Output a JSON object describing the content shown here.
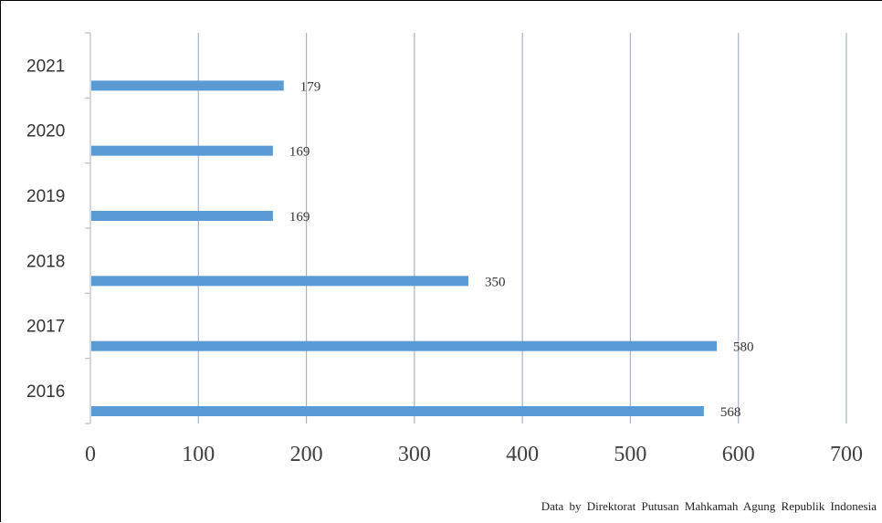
{
  "chart_data": {
    "type": "bar",
    "orientation": "horizontal",
    "categories": [
      "2016",
      "2017",
      "2018",
      "2019",
      "2020",
      "2021"
    ],
    "values": [
      568,
      580,
      350,
      169,
      169,
      179
    ],
    "data_labels": [
      "568",
      "580",
      "350",
      "169",
      "169",
      "179"
    ],
    "xlim": [
      0,
      700
    ],
    "x_ticks": [
      0,
      100,
      200,
      300,
      400,
      500,
      600,
      700
    ],
    "grid": "vertical",
    "bar_color": "#5B9BD5",
    "grid_color": "#A6B4C8",
    "title": "",
    "xlabel": "",
    "ylabel": ""
  },
  "source_note": "Data by Direktorat Putusan Mahkamah Agung Republik Indonesia"
}
